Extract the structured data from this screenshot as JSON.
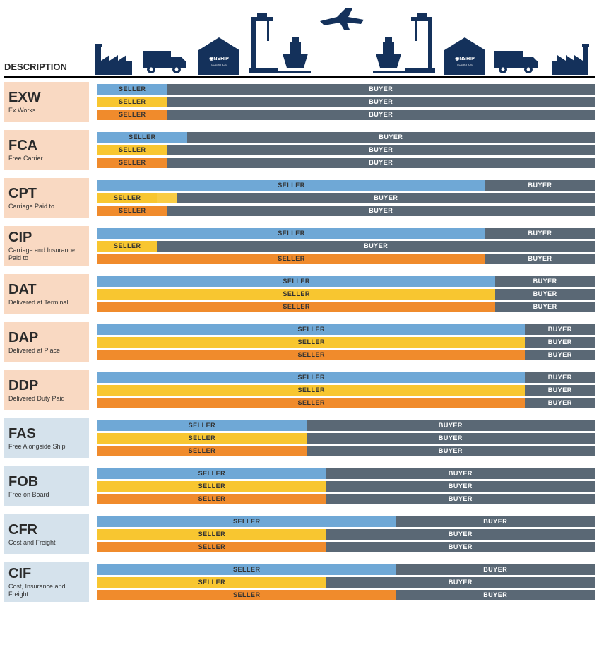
{
  "description_header": "DESCRIPTION",
  "colors": {
    "navy": "#14315b",
    "buyer_bar": "#5a6875",
    "seller_blue": "#6fa8d6",
    "seller_yellow": "#f8c630",
    "seller_orange": "#f08b2c",
    "label_bg_peach": "#f9d9c2",
    "label_bg_lightblue": "#d5e2ec",
    "text_dark": "#2a2a2a",
    "buyer_text": "#ffffff",
    "seller_text": "#333333"
  },
  "labels": {
    "seller": "SELLER",
    "buyer": "BUYER"
  },
  "bar_colors_by_index": [
    "#6fa8d6",
    "#f8c630",
    "#f08b2c"
  ],
  "terms": [
    {
      "abbr": "EXW",
      "full": "Ex Works",
      "label_bg": "#f9d9c2",
      "bars": [
        {
          "seller_pct": 14,
          "buyer_pct": 86
        },
        {
          "seller_pct": 14,
          "buyer_pct": 86
        },
        {
          "seller_pct": 14,
          "buyer_pct": 86
        }
      ]
    },
    {
      "abbr": "FCA",
      "full": "Free Carrier",
      "label_bg": "#f9d9c2",
      "bars": [
        {
          "seller_pct": 18,
          "buyer_pct": 82
        },
        {
          "seller_pct": 14,
          "buyer_pct": 86
        },
        {
          "seller_pct": 14,
          "buyer_pct": 86
        }
      ]
    },
    {
      "abbr": "CPT",
      "full": "Carriage Paid to",
      "label_bg": "#f9d9c2",
      "bars": [
        {
          "seller_pct": 78,
          "buyer_pct": 22
        },
        {
          "seller_pct": 12,
          "buyer_pct": 84,
          "seller_tail_pct": 4
        },
        {
          "seller_pct": 14,
          "buyer_pct": 86
        }
      ]
    },
    {
      "abbr": "CIP",
      "full": "Carriage and Insurance Paid to",
      "label_bg": "#f9d9c2",
      "bars": [
        {
          "seller_pct": 78,
          "buyer_pct": 22
        },
        {
          "seller_pct": 12,
          "buyer_pct": 88
        },
        {
          "seller_pct": 78,
          "buyer_pct": 22
        }
      ]
    },
    {
      "abbr": "DAT",
      "full": "Delivered at Terminal",
      "label_bg": "#f9d9c2",
      "bars": [
        {
          "seller_pct": 80,
          "buyer_pct": 20
        },
        {
          "seller_pct": 80,
          "buyer_pct": 20
        },
        {
          "seller_pct": 80,
          "buyer_pct": 20
        }
      ]
    },
    {
      "abbr": "DAP",
      "full": "Delivered at Place",
      "label_bg": "#f9d9c2",
      "bars": [
        {
          "seller_pct": 86,
          "buyer_pct": 14
        },
        {
          "seller_pct": 86,
          "buyer_pct": 14
        },
        {
          "seller_pct": 86,
          "buyer_pct": 14
        }
      ]
    },
    {
      "abbr": "DDP",
      "full": "Delivered Duty Paid",
      "label_bg": "#f9d9c2",
      "bars": [
        {
          "seller_pct": 86,
          "buyer_pct": 14
        },
        {
          "seller_pct": 86,
          "buyer_pct": 14
        },
        {
          "seller_pct": 86,
          "buyer_pct": 14
        }
      ]
    },
    {
      "abbr": "FAS",
      "full": "Free Alongside Ship",
      "label_bg": "#d5e2ec",
      "bars": [
        {
          "seller_pct": 42,
          "buyer_pct": 58
        },
        {
          "seller_pct": 42,
          "buyer_pct": 58
        },
        {
          "seller_pct": 42,
          "buyer_pct": 58
        }
      ]
    },
    {
      "abbr": "FOB",
      "full": "Free on Board",
      "label_bg": "#d5e2ec",
      "bars": [
        {
          "seller_pct": 46,
          "buyer_pct": 54
        },
        {
          "seller_pct": 46,
          "buyer_pct": 54
        },
        {
          "seller_pct": 46,
          "buyer_pct": 54
        }
      ]
    },
    {
      "abbr": "CFR",
      "full": "Cost and Freight",
      "label_bg": "#d5e2ec",
      "bars": [
        {
          "seller_pct": 60,
          "buyer_pct": 40
        },
        {
          "seller_pct": 46,
          "buyer_pct": 54
        },
        {
          "seller_pct": 46,
          "buyer_pct": 54
        }
      ]
    },
    {
      "abbr": "CIF",
      "full": "Cost, Insurance and Freight",
      "label_bg": "#d5e2ec",
      "bars": [
        {
          "seller_pct": 60,
          "buyer_pct": 40
        },
        {
          "seller_pct": 46,
          "buyer_pct": 54
        },
        {
          "seller_pct": 60,
          "buyer_pct": 40
        }
      ]
    }
  ]
}
